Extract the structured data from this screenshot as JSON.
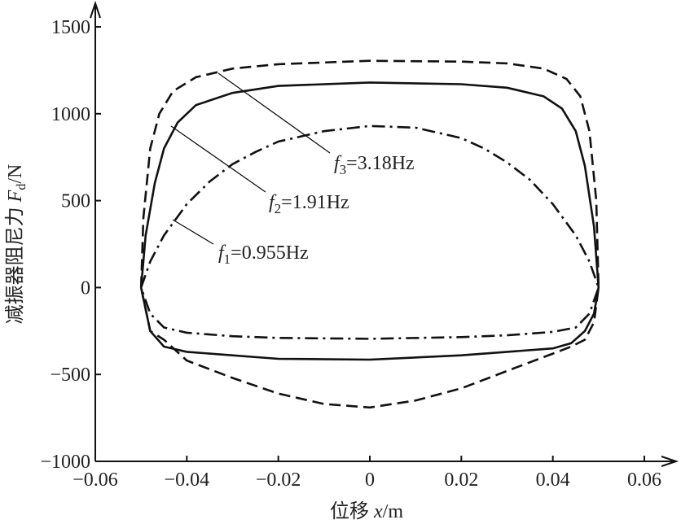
{
  "chart_data": {
    "type": "line",
    "x_label": {
      "text": "位移",
      "symbol": "x",
      "unit": "/m"
    },
    "y_label": {
      "text": "减振器阻尼力",
      "symbol": "F",
      "sub": "d",
      "unit": "/N"
    },
    "xlim": [
      -0.06,
      0.06
    ],
    "ylim": [
      -1000,
      1500
    ],
    "xticks": [
      {
        "value": -0.06,
        "label": "−0.06"
      },
      {
        "value": -0.04,
        "label": "−0.04"
      },
      {
        "value": -0.02,
        "label": "−0.02"
      },
      0,
      0.02,
      0.04,
      0.06
    ],
    "yticks": [
      {
        "value": -1000,
        "label": "−1000"
      },
      {
        "value": -500,
        "label": "−500"
      },
      0,
      500,
      1000,
      1500
    ],
    "grid": false,
    "series": [
      {
        "name": "f1",
        "color": "#111",
        "dash": "dashdot",
        "x": [
          -0.05,
          -0.048,
          -0.045,
          -0.04,
          -0.035,
          -0.03,
          -0.025,
          -0.02,
          -0.01,
          0,
          0.01,
          0.02,
          0.025,
          0.03,
          0.035,
          0.04,
          0.045,
          0.048,
          0.05,
          0.048,
          0.045,
          0.04,
          0.03,
          0.02,
          0,
          -0.02,
          -0.03,
          -0.04,
          -0.045,
          -0.048,
          -0.05
        ],
        "values": [
          0,
          150,
          300,
          480,
          610,
          710,
          780,
          840,
          900,
          930,
          920,
          860,
          800,
          720,
          620,
          480,
          300,
          150,
          0,
          -150,
          -230,
          -255,
          -275,
          -285,
          -295,
          -290,
          -280,
          -260,
          -230,
          -150,
          0
        ]
      },
      {
        "name": "f2",
        "color": "#111",
        "dash": "solid",
        "x": [
          -0.05,
          -0.049,
          -0.047,
          -0.045,
          -0.042,
          -0.038,
          -0.03,
          -0.02,
          0,
          0.02,
          0.03,
          0.038,
          0.042,
          0.045,
          0.047,
          0.049,
          0.05,
          0.049,
          0.047,
          0.044,
          0.04,
          0.02,
          0,
          -0.02,
          -0.04,
          -0.045,
          -0.048,
          -0.05
        ],
        "values": [
          0,
          300,
          600,
          800,
          950,
          1050,
          1120,
          1160,
          1180,
          1170,
          1150,
          1100,
          1030,
          900,
          700,
          350,
          0,
          -150,
          -250,
          -320,
          -350,
          -390,
          -415,
          -410,
          -370,
          -340,
          -250,
          0
        ]
      },
      {
        "name": "f3",
        "color": "#111",
        "dash": "dashed",
        "x": [
          -0.05,
          -0.0495,
          -0.048,
          -0.046,
          -0.043,
          -0.038,
          -0.03,
          -0.02,
          0,
          0.02,
          0.03,
          0.038,
          0.043,
          0.046,
          0.048,
          0.0495,
          0.05,
          0.049,
          0.047,
          0.044,
          0.04,
          0.03,
          0.02,
          0.01,
          0,
          -0.01,
          -0.02,
          -0.03,
          -0.04,
          -0.045,
          -0.048,
          -0.05
        ],
        "values": [
          0,
          400,
          800,
          1000,
          1130,
          1210,
          1260,
          1285,
          1305,
          1300,
          1290,
          1260,
          1200,
          1100,
          900,
          500,
          0,
          -200,
          -300,
          -340,
          -380,
          -480,
          -580,
          -650,
          -690,
          -670,
          -610,
          -520,
          -420,
          -300,
          -250,
          0
        ]
      }
    ],
    "annotations": [
      {
        "symbol": "f",
        "sub": "3",
        "text": "=3.18Hz"
      },
      {
        "symbol": "f",
        "sub": "2",
        "text": "=1.91Hz"
      },
      {
        "symbol": "f",
        "sub": "1",
        "text": "=0.955Hz"
      }
    ]
  }
}
